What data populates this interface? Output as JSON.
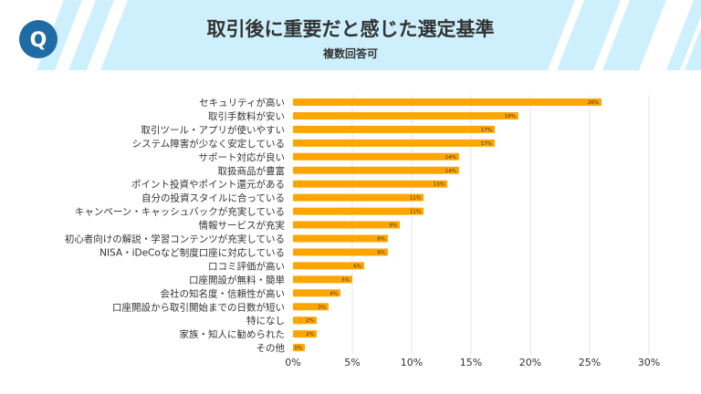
{
  "header": {
    "logo_letter": "Q",
    "logo_color": "#1f6ba5",
    "band_color": "#cdf0fc"
  },
  "chart_data": {
    "type": "bar",
    "orientation": "horizontal",
    "title": "取引後に重要だと感じた選定基準",
    "subtitle": "複数回答可",
    "categories": [
      "セキュリティが高い",
      "取引手数料が安い",
      "取引ツール・アプリが使いやすい",
      "システム障害が少なく安定している",
      "サポート対応が良い",
      "取扱商品が豊富",
      "ポイント投資やポイント還元がある",
      "自分の投資スタイルに合っている",
      "キャンペーン・キャッシュバックが充実している",
      "情報サービスが充実",
      "初心者向けの解説・学習コンテンツが充実している",
      "NISA・iDeCoなど制度口座に対応している",
      "口コミ評価が高い",
      "口座開設が無料・簡単",
      "会社の知名度・信頼性が高い",
      "口座開設から取引開始までの日数が短い",
      "特になし",
      "家族・知人に勧められた",
      "その他"
    ],
    "values": [
      26,
      19,
      17,
      17,
      14,
      14,
      13,
      11,
      11,
      9,
      8,
      8,
      6,
      5,
      4,
      3,
      2,
      2,
      1
    ],
    "data_labels": [
      "26%",
      "19%",
      "17%",
      "17%",
      "14%",
      "14%",
      "13%",
      "11%",
      "11%",
      "9%",
      "8%",
      "8%",
      "6%",
      "5%",
      "4%",
      "3%",
      "2%",
      "2%",
      "1%"
    ],
    "xlim": [
      0,
      30
    ],
    "xticks": [
      "0%",
      "5%",
      "10%",
      "15%",
      "20%",
      "25%",
      "30%"
    ],
    "grid": true,
    "bar_color": "#ffa500"
  }
}
